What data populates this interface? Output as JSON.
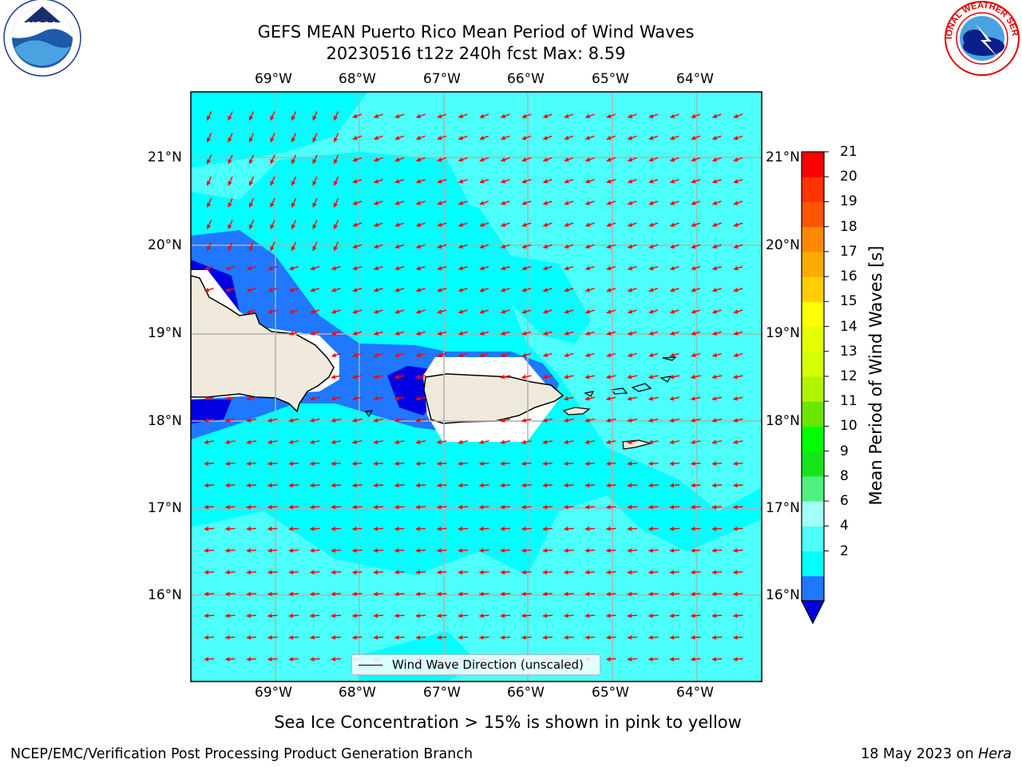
{
  "header": {
    "title_line1": "GEFS MEAN Puerto Rico Mean Period of Wind Waves",
    "title_line2": "20230516 t12z 240h fcst   Max: 8.59"
  },
  "logos": {
    "left": {
      "icon": "noaa-logo",
      "text": "NOAA",
      "ring_text": "NATIONAL OCEANIC AND ATMOSPHERIC ADMINISTRATION · U.S. DEPARTMENT OF COMMERCE"
    },
    "right": {
      "icon": "nws-logo",
      "ring_text": "NATIONAL WEATHER SERVICE"
    }
  },
  "map": {
    "lon_ticks": [
      "69°W",
      "68°W",
      "67°W",
      "66°W",
      "65°W",
      "64°W"
    ],
    "lat_ticks": [
      "21°N",
      "20°N",
      "19°N",
      "18°N",
      "17°N",
      "16°N"
    ],
    "wind_wave_direction": "from ENE toward WSW (north domain), from E toward W (south domain)",
    "colors": {
      "sea_4_6": "#00ffff",
      "sea_6_8": "#4dfffa",
      "sea_2_4": "#1f78ff",
      "sea_lt_2": "#0000e0",
      "land": "#efeadc",
      "arrow": "#ff0000"
    }
  },
  "legend": {
    "label": "Wind Wave Direction (unscaled)"
  },
  "colorbar": {
    "label": "Mean Period of Wind Waves [s]",
    "ticks": [
      "21",
      "20",
      "19",
      "18",
      "17",
      "16",
      "15",
      "14",
      "13",
      "12",
      "11",
      "10",
      "9",
      "8",
      "6",
      "4",
      "2"
    ],
    "colors_bottom_to_top": [
      "#1f78ff",
      "#00ffff",
      "#4dfffa",
      "#a2fff5",
      "#50f07f",
      "#14e61a",
      "#00ff00",
      "#6ae600",
      "#b0f500",
      "#d5ff00",
      "#e6ff00",
      "#ffff00",
      "#ffcd00",
      "#ffaa00",
      "#ff8800",
      "#ff5500",
      "#ff3300",
      "#ff0000"
    ],
    "under_color": "#0000e0"
  },
  "notes": {
    "sea_ice": "Sea Ice Concentration > 15% is shown in pink to yellow"
  },
  "footer": {
    "branch": "NCEP/EMC/Verification Post Processing Product Generation Branch",
    "date": "18 May 2023 on",
    "machine": "Hera"
  }
}
